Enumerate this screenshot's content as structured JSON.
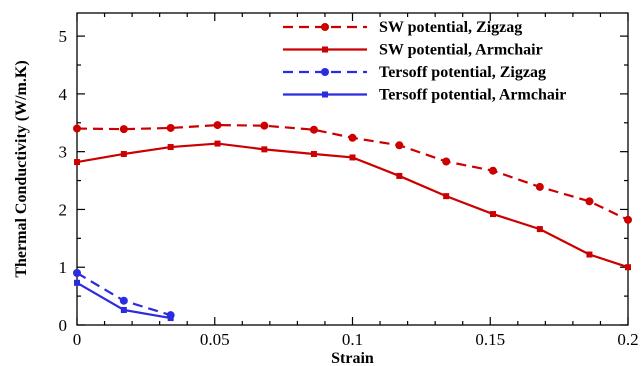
{
  "chart_data": {
    "type": "line",
    "xlabel": "Strain",
    "ylabel": "Thermal Conductivity (W/m.K)",
    "xlim": [
      0,
      0.2
    ],
    "ylim": [
      0,
      5.4
    ],
    "x_ticks": [
      {
        "value": 0,
        "label": "0"
      },
      {
        "value": 0.05,
        "label": "0.05"
      },
      {
        "value": 0.1,
        "label": "0.1"
      },
      {
        "value": 0.15,
        "label": "0.15"
      },
      {
        "value": 0.2,
        "label": "0.2"
      }
    ],
    "y_ticks": [
      {
        "value": 0,
        "label": "0"
      },
      {
        "value": 1,
        "label": "1"
      },
      {
        "value": 2,
        "label": "2"
      },
      {
        "value": 3,
        "label": "3"
      },
      {
        "value": 4,
        "label": "4"
      },
      {
        "value": 5,
        "label": "5"
      }
    ],
    "legend_position": "top-right",
    "grid": false,
    "series": [
      {
        "name": "SW potential, Zigzag",
        "color": "#cc0000",
        "dashed": true,
        "marker": "circle",
        "x": [
          0,
          0.017,
          0.034,
          0.051,
          0.068,
          0.086,
          0.1,
          0.117,
          0.134,
          0.151,
          0.168,
          0.186,
          0.2
        ],
        "y": [
          3.4,
          3.39,
          3.41,
          3.46,
          3.45,
          3.38,
          3.24,
          3.11,
          2.83,
          2.67,
          2.39,
          2.14,
          1.82
        ]
      },
      {
        "name": "SW potential, Armchair",
        "color": "#cc0000",
        "dashed": false,
        "marker": "square",
        "x": [
          0,
          0.017,
          0.034,
          0.051,
          0.068,
          0.086,
          0.1,
          0.117,
          0.134,
          0.151,
          0.168,
          0.186,
          0.2
        ],
        "y": [
          2.82,
          2.96,
          3.08,
          3.14,
          3.04,
          2.96,
          2.9,
          2.58,
          2.23,
          1.92,
          1.66,
          1.22,
          1.0
        ]
      },
      {
        "name": "Tersoff  potential, Zigzag",
        "color": "#2b2bdf",
        "dashed": true,
        "marker": "circle",
        "x": [
          0,
          0.017,
          0.034
        ],
        "y": [
          0.9,
          0.42,
          0.17
        ]
      },
      {
        "name": "Tersoff potential, Armchair",
        "color": "#2b2bdf",
        "dashed": false,
        "marker": "square",
        "x": [
          0,
          0.017,
          0.034
        ],
        "y": [
          0.73,
          0.26,
          0.12
        ]
      }
    ]
  }
}
